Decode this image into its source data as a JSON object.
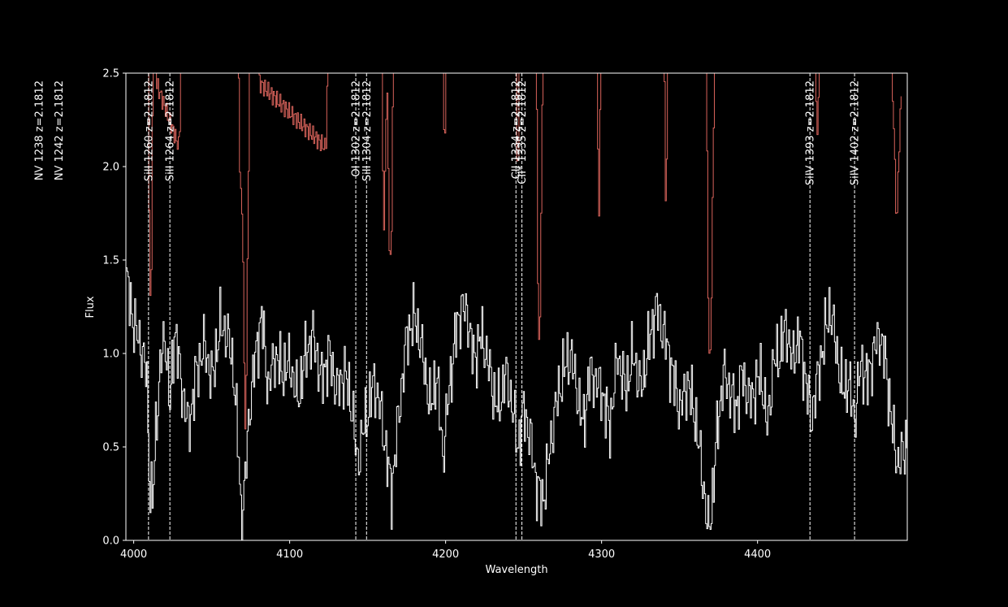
{
  "chart_data": {
    "type": "line",
    "title": "",
    "xlabel": "Wavelength",
    "ylabel": "Flux",
    "xlim": [
      3995,
      4496
    ],
    "ylim": [
      0,
      2.5
    ],
    "x_ticks": [
      4000,
      4100,
      4200,
      4300,
      4400
    ],
    "x_tick_labels": [
      "4000",
      "4100",
      "4200",
      "4300",
      "4400"
    ],
    "y_ticks": [
      0,
      0.5,
      1.0,
      1.5,
      2.0,
      2.5
    ],
    "y_tick_labels": [
      "0.0",
      "0.5",
      "1.0",
      "1.5",
      "2.0",
      "2.5"
    ],
    "grid": false,
    "colors": {
      "background": "#000000",
      "flux": "#ffffff",
      "error": "#d9635b",
      "lines": "#ffffff",
      "axes": "#ffffff"
    },
    "series": [
      {
        "key": "flux",
        "style": "steps",
        "anchors": [
          [
            3995,
            1.4
          ],
          [
            4000,
            1.15
          ],
          [
            4004,
            1.05
          ],
          [
            4008,
            0.9
          ],
          [
            4010,
            0.3
          ],
          [
            4012,
            0.2
          ],
          [
            4014,
            0.6
          ],
          [
            4017,
            0.95
          ],
          [
            4020,
            1.1
          ],
          [
            4023,
            0.7
          ],
          [
            4026,
            1.15
          ],
          [
            4030,
            0.85
          ],
          [
            4035,
            0.6
          ],
          [
            4040,
            0.9
          ],
          [
            4045,
            1.05
          ],
          [
            4050,
            0.85
          ],
          [
            4055,
            1.15
          ],
          [
            4060,
            1.1
          ],
          [
            4064,
            0.9
          ],
          [
            4067,
            0.45
          ],
          [
            4069,
            0.05
          ],
          [
            4071,
            0.3
          ],
          [
            4074,
            0.7
          ],
          [
            4078,
            1.0
          ],
          [
            4082,
            1.2
          ],
          [
            4086,
            0.8
          ],
          [
            4090,
            1.0
          ],
          [
            4095,
            0.9
          ],
          [
            4100,
            0.95
          ],
          [
            4105,
            0.75
          ],
          [
            4110,
            1.0
          ],
          [
            4115,
            1.1
          ],
          [
            4120,
            0.85
          ],
          [
            4125,
            1.0
          ],
          [
            4130,
            0.8
          ],
          [
            4135,
            0.9
          ],
          [
            4140,
            0.7
          ],
          [
            4143,
            0.4
          ],
          [
            4146,
            0.55
          ],
          [
            4150,
            0.7
          ],
          [
            4154,
            0.85
          ],
          [
            4158,
            0.7
          ],
          [
            4162,
            0.45
          ],
          [
            4165,
            0.25
          ],
          [
            4170,
            0.7
          ],
          [
            4175,
            1.1
          ],
          [
            4180,
            1.2
          ],
          [
            4185,
            1.0
          ],
          [
            4190,
            0.7
          ],
          [
            4194,
            0.9
          ],
          [
            4198,
            0.45
          ],
          [
            4202,
            0.8
          ],
          [
            4206,
            1.1
          ],
          [
            4210,
            1.25
          ],
          [
            4214,
            1.2
          ],
          [
            4218,
            0.95
          ],
          [
            4222,
            1.1
          ],
          [
            4226,
            1.0
          ],
          [
            4230,
            0.8
          ],
          [
            4234,
            0.7
          ],
          [
            4238,
            0.9
          ],
          [
            4242,
            0.75
          ],
          [
            4246,
            0.5
          ],
          [
            4250,
            0.7
          ],
          [
            4254,
            0.55
          ],
          [
            4258,
            0.3
          ],
          [
            4262,
            0.2
          ],
          [
            4266,
            0.45
          ],
          [
            4270,
            0.7
          ],
          [
            4275,
            0.9
          ],
          [
            4280,
            1.0
          ],
          [
            4284,
            0.8
          ],
          [
            4288,
            0.6
          ],
          [
            4292,
            0.9
          ],
          [
            4296,
            0.85
          ],
          [
            4300,
            0.8
          ],
          [
            4305,
            0.6
          ],
          [
            4310,
            1.0
          ],
          [
            4315,
            0.8
          ],
          [
            4320,
            1.0
          ],
          [
            4325,
            0.8
          ],
          [
            4330,
            1.05
          ],
          [
            4335,
            1.25
          ],
          [
            4340,
            1.1
          ],
          [
            4345,
            0.9
          ],
          [
            4350,
            0.7
          ],
          [
            4355,
            0.85
          ],
          [
            4360,
            0.65
          ],
          [
            4365,
            0.3
          ],
          [
            4368,
            0.05
          ],
          [
            4370,
            0.15
          ],
          [
            4374,
            0.6
          ],
          [
            4378,
            0.9
          ],
          [
            4382,
            0.8
          ],
          [
            4386,
            0.7
          ],
          [
            4390,
            0.9
          ],
          [
            4394,
            0.75
          ],
          [
            4398,
            0.8
          ],
          [
            4402,
            0.9
          ],
          [
            4406,
            0.6
          ],
          [
            4410,
            0.95
          ],
          [
            4414,
            1.0
          ],
          [
            4418,
            1.15
          ],
          [
            4422,
            0.95
          ],
          [
            4426,
            1.1
          ],
          [
            4430,
            0.9
          ],
          [
            4434,
            0.65
          ],
          [
            4438,
            0.85
          ],
          [
            4442,
            1.05
          ],
          [
            4446,
            1.25
          ],
          [
            4450,
            1.05
          ],
          [
            4454,
            0.8
          ],
          [
            4458,
            0.85
          ],
          [
            4462,
            0.65
          ],
          [
            4466,
            0.95
          ],
          [
            4470,
            0.85
          ],
          [
            4474,
            1.0
          ],
          [
            4478,
            1.1
          ],
          [
            4482,
            0.95
          ],
          [
            4486,
            0.6
          ],
          [
            4490,
            0.4
          ],
          [
            4496,
            0.55
          ]
        ]
      },
      {
        "key": "error",
        "style": "steps",
        "anchors": [
          [
            4009,
            2.5
          ],
          [
            4010,
            1.4
          ],
          [
            4011,
            1.3
          ],
          [
            4012,
            2.5
          ],
          [
            4029,
            2.1
          ],
          [
            4030,
            2.5
          ],
          [
            4067,
            2.5
          ],
          [
            4068,
            1.9
          ],
          [
            4069,
            1.8
          ],
          [
            4070,
            1.5
          ],
          [
            4071,
            0.5
          ],
          [
            4072,
            0.9
          ],
          [
            4074,
            2.5
          ],
          [
            4123,
            2.1
          ],
          [
            4124,
            2.5
          ],
          [
            4159,
            2.5
          ],
          [
            4160,
            1.55
          ],
          [
            4161,
            2.0
          ],
          [
            4162,
            2.5
          ],
          [
            4163,
            2.0
          ],
          [
            4164,
            1.4
          ],
          [
            4165,
            1.6
          ],
          [
            4166,
            2.5
          ],
          [
            4198,
            2.5
          ],
          [
            4199,
            2.0
          ],
          [
            4200,
            2.5
          ],
          [
            4245,
            2.5
          ],
          [
            4246,
            1.8
          ],
          [
            4247,
            2.5
          ],
          [
            4258,
            2.5
          ],
          [
            4259,
            1.3
          ],
          [
            4260,
            0.9
          ],
          [
            4261,
            1.8
          ],
          [
            4262,
            2.5
          ],
          [
            4297,
            2.5
          ],
          [
            4298,
            1.6
          ],
          [
            4299,
            2.5
          ],
          [
            4340,
            2.5
          ],
          [
            4341,
            1.65
          ],
          [
            4342,
            2.5
          ],
          [
            4367,
            2.5
          ],
          [
            4368,
            1.4
          ],
          [
            4369,
            0.85
          ],
          [
            4370,
            1.2
          ],
          [
            4372,
            2.5
          ],
          [
            4437,
            2.5
          ],
          [
            4438,
            2.1
          ],
          [
            4439,
            2.5
          ],
          [
            4486,
            2.5
          ],
          [
            4488,
            1.95
          ],
          [
            4489,
            1.65
          ],
          [
            4490,
            2.0
          ],
          [
            4492,
            2.4
          ]
        ]
      }
    ],
    "line_markers": [
      {
        "label": "NV 1238  z=2.1812",
        "wavelength": 3939.3
      },
      {
        "label": "NV 1242  z=2.1812",
        "wavelength": 3952.0
      },
      {
        "label": "SiII 1260  z=2.1812",
        "wavelength": 4009.5
      },
      {
        "label": "SiII 1264  z=2.1812",
        "wavelength": 4023.2
      },
      {
        "label": "OI 1302  z=2.1812",
        "wavelength": 4142.4
      },
      {
        "label": "SiII 1304  z=2.1812",
        "wavelength": 4149.3
      },
      {
        "label": "CII 1334  z=2.1812",
        "wavelength": 4245.1
      },
      {
        "label": "CII* 1335  z=2.1812",
        "wavelength": 4248.9
      },
      {
        "label": "SiIV 1393  z=2.1812",
        "wavelength": 4433.6
      },
      {
        "label": "SiIV 1402  z=2.1812",
        "wavelength": 4462.2
      }
    ]
  }
}
